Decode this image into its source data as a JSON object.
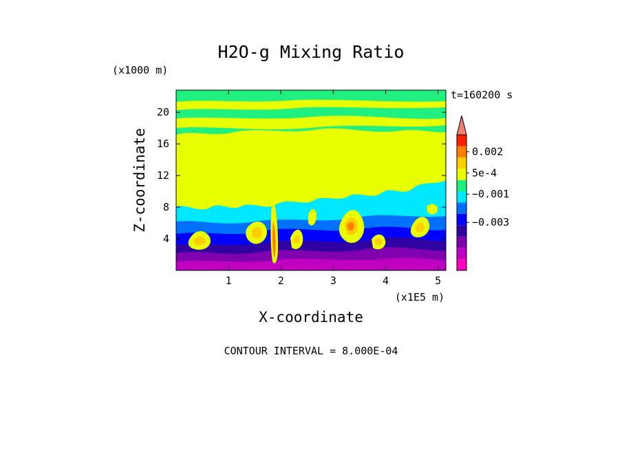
{
  "chart_data": {
    "type": "heatmap",
    "title": "H2O-g Mixing Ratio",
    "time_label": "t=160200 s",
    "xlabel": "X-coordinate",
    "ylabel": "Z-coordinate",
    "x_unit": "(x1E5 m)",
    "y_unit": "(x1000 m)",
    "xlim": [
      0,
      5.15
    ],
    "ylim": [
      0,
      22.8
    ],
    "x_ticks": [
      1,
      2,
      3,
      4,
      5
    ],
    "x_tick_labels": [
      "1",
      "2",
      "3",
      "4",
      "5"
    ],
    "y_ticks": [
      4,
      8,
      12,
      16,
      20
    ],
    "y_tick_labels": [
      "4",
      "8",
      "12",
      "16",
      "20"
    ],
    "footer": "CONTOUR INTERVAL = 8.000E-04",
    "colorbar": {
      "levels": [
        -0.0048,
        -0.004,
        -0.0032,
        -0.0024,
        -0.0016,
        -0.0008,
        0,
        0.0008,
        0.0016,
        0.0024,
        0.0032
      ],
      "colors": [
        "#ff00c0",
        "#c000c0",
        "#8000b0",
        "#3000a0",
        "#0000ff",
        "#0070ff",
        "#00e8ff",
        "#20f080",
        "#e8ff00",
        "#ffd000",
        "#ff8000",
        "#ff2000",
        "#f08070"
      ],
      "labels": [
        {
          "text": "0.002",
          "value": 0.002
        },
        {
          "text": "5e-4",
          "value": 0.0005
        },
        {
          "text": "−0.001",
          "value": -0.001
        },
        {
          "text": "−0.003",
          "value": -0.003
        }
      ]
    }
  }
}
